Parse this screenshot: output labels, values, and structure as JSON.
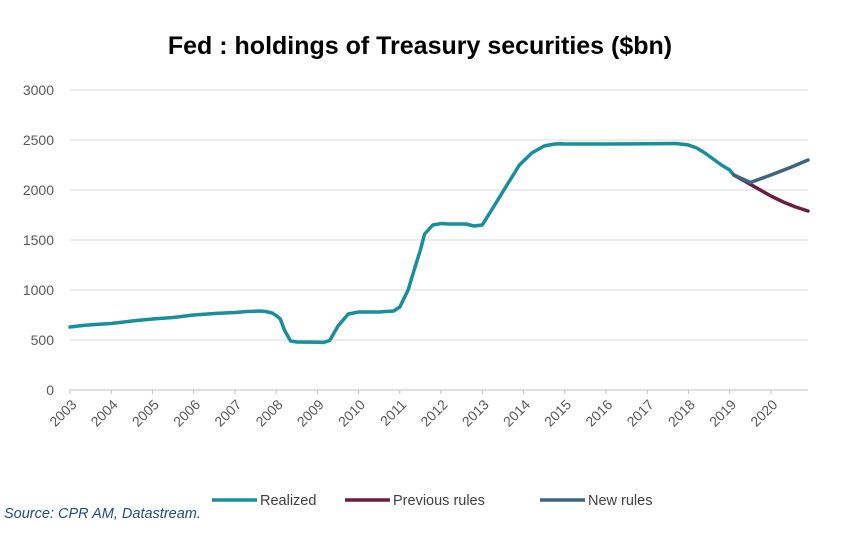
{
  "source": "Source: CPR AM, Datastream.",
  "colors": {
    "realized": "#1a8f9c",
    "previous_rules": "#6b1f3e",
    "new_rules": "#3d6480",
    "grid": "#d9d9d9",
    "axis": "#bfbfbf"
  },
  "chart_data": {
    "type": "line",
    "title": "Fed : holdings of Treasury securities ($bn)",
    "xlabel": "",
    "ylabel": "",
    "xlim": [
      2003,
      2020.9
    ],
    "ylim": [
      0,
      3000
    ],
    "yticks": [
      0,
      500,
      1000,
      1500,
      2000,
      2500,
      3000
    ],
    "xticks": [
      "2003",
      "2004",
      "2005",
      "2006",
      "2007",
      "2008",
      "2009",
      "2010",
      "2011",
      "2012",
      "2013",
      "2014",
      "2015",
      "2016",
      "2017",
      "2018",
      "2019",
      "2020"
    ],
    "grid": true,
    "legend": "bottom",
    "series": [
      {
        "name": "Realized",
        "color_key": "realized",
        "x": [
          2003.0,
          2003.3,
          2003.6,
          2004.0,
          2004.5,
          2005.0,
          2005.5,
          2006.0,
          2006.5,
          2007.0,
          2007.3,
          2007.6,
          2007.75,
          2007.9,
          2008.0,
          2008.1,
          2008.2,
          2008.35,
          2008.5,
          2009.0,
          2009.15,
          2009.3,
          2009.5,
          2009.75,
          2010.0,
          2010.5,
          2010.85,
          2011.0,
          2011.2,
          2011.4,
          2011.5,
          2011.6,
          2011.8,
          2012.0,
          2012.2,
          2012.4,
          2012.6,
          2012.8,
          2013.0,
          2013.3,
          2013.6,
          2013.9,
          2014.2,
          2014.5,
          2014.75,
          2014.9,
          2015.0,
          2016.0,
          2017.0,
          2017.7,
          2018.0,
          2018.2,
          2018.4,
          2018.6,
          2018.8,
          2019.0,
          2019.1
        ],
        "y": [
          630,
          645,
          655,
          665,
          690,
          710,
          725,
          750,
          765,
          775,
          785,
          790,
          785,
          770,
          745,
          710,
          600,
          490,
          480,
          477,
          475,
          495,
          640,
          760,
          780,
          780,
          790,
          830,
          1000,
          1270,
          1400,
          1560,
          1650,
          1665,
          1660,
          1660,
          1660,
          1640,
          1650,
          1850,
          2050,
          2250,
          2370,
          2440,
          2460,
          2462,
          2460,
          2460,
          2462,
          2465,
          2450,
          2420,
          2370,
          2310,
          2250,
          2200,
          2150
        ]
      },
      {
        "name": "Previous rules",
        "color_key": "previous_rules",
        "x": [
          2019.1,
          2019.4,
          2019.7,
          2020.0,
          2020.3,
          2020.6,
          2020.9
        ],
        "y": [
          2150,
          2080,
          2010,
          1940,
          1880,
          1830,
          1790
        ]
      },
      {
        "name": "New rules",
        "color_key": "new_rules",
        "x": [
          2019.1,
          2019.5,
          2020.0,
          2020.5,
          2020.9
        ],
        "y": [
          2150,
          2075,
          2150,
          2230,
          2300
        ]
      }
    ]
  }
}
